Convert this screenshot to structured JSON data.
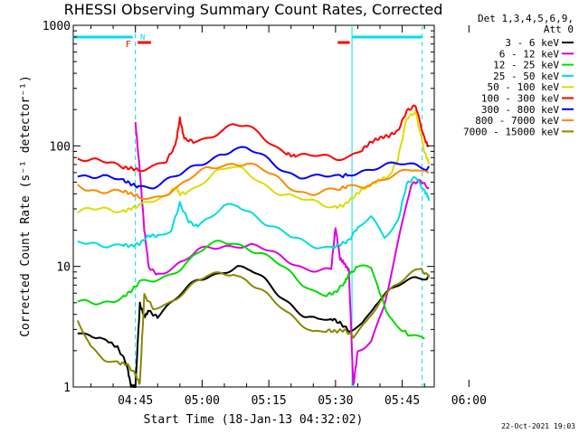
{
  "chart_data": {
    "type": "line",
    "title": "RHESSI Observing Summary Count Rates, Corrected",
    "xlabel": "Start Time (18-Jan-13 04:32:02)",
    "ylabel": "Corrected Count Rate (s⁻¹ detector⁻¹)",
    "yscale": "log",
    "ylim": [
      1,
      1000
    ],
    "y_ticks": [
      "1",
      "10",
      "100",
      "1000"
    ],
    "x_ticks": [
      "04:45",
      "05:00",
      "05:15",
      "05:30",
      "05:45",
      "06:00"
    ],
    "xlim_minutes": [
      -13.97,
      67.2
    ],
    "legend_header": [
      "Det 1,3,4,5,6,9,",
      "Att 0"
    ],
    "legend_position": "right",
    "markers": {
      "flare_label": "F",
      "night_label": "N"
    },
    "series": [
      {
        "name": "3 - 6 keV",
        "color": "#000000",
        "points": [
          [
            -13,
            3.0
          ],
          [
            -8,
            2.6
          ],
          [
            -4,
            2.0
          ],
          [
            -2,
            1.5
          ],
          [
            -1,
            1.0
          ],
          [
            0,
            1.0
          ],
          [
            1,
            5.0
          ],
          [
            2,
            4.0
          ],
          [
            3,
            4.5
          ],
          [
            5,
            4.0
          ],
          [
            8,
            5.0
          ],
          [
            11,
            6.0
          ],
          [
            14,
            7.5
          ],
          [
            17,
            8.5
          ],
          [
            20,
            9.5
          ],
          [
            23,
            10
          ],
          [
            26,
            9
          ],
          [
            29,
            7.5
          ],
          [
            32,
            6
          ],
          [
            35,
            5
          ],
          [
            38,
            4
          ],
          [
            41,
            3.5
          ],
          [
            44,
            3.5
          ],
          [
            46,
            3.3
          ],
          [
            48,
            3.0
          ],
          [
            51,
            3.5
          ],
          [
            54,
            5
          ],
          [
            57,
            6
          ],
          [
            60,
            7
          ],
          [
            63,
            8
          ],
          [
            66,
            8.5
          ]
        ]
      },
      {
        "name": "6 - 12 keV",
        "color": "#dd00dd",
        "points": [
          [
            0,
            150
          ],
          [
            1,
            60
          ],
          [
            2,
            20
          ],
          [
            3,
            10
          ],
          [
            5,
            9
          ],
          [
            8,
            10
          ],
          [
            11,
            11
          ],
          [
            14,
            13
          ],
          [
            17,
            14
          ],
          [
            20,
            15
          ],
          [
            23,
            15.5
          ],
          [
            26,
            15
          ],
          [
            29,
            13.5
          ],
          [
            32,
            12
          ],
          [
            35,
            11
          ],
          [
            38,
            10
          ],
          [
            41,
            9.5
          ],
          [
            44,
            9
          ],
          [
            45,
            20
          ],
          [
            46,
            11
          ],
          [
            47,
            10
          ],
          [
            48,
            9
          ],
          [
            49,
            1.0
          ],
          [
            50,
            2.0
          ],
          [
            53,
            2.5
          ],
          [
            56,
            5
          ],
          [
            59,
            15
          ],
          [
            62,
            45
          ],
          [
            64,
            50
          ],
          [
            66,
            45
          ]
        ]
      },
      {
        "name": "12 - 25 keV",
        "color": "#00dd00",
        "points": [
          [
            -13,
            5.0
          ],
          [
            -8,
            5.2
          ],
          [
            -3,
            5.5
          ],
          [
            -1,
            6.0
          ],
          [
            1,
            7.0
          ],
          [
            4,
            7.5
          ],
          [
            7,
            8.5
          ],
          [
            10,
            10
          ],
          [
            13,
            12
          ],
          [
            16,
            14
          ],
          [
            19,
            15.5
          ],
          [
            22,
            16
          ],
          [
            25,
            15
          ],
          [
            28,
            13
          ],
          [
            31,
            11
          ],
          [
            34,
            9
          ],
          [
            37,
            7.5
          ],
          [
            40,
            6.5
          ],
          [
            43,
            6
          ],
          [
            45,
            6
          ],
          [
            47,
            7.0
          ],
          [
            48,
            8
          ],
          [
            50,
            9.5
          ],
          [
            53,
            10
          ],
          [
            57,
            4
          ],
          [
            60,
            3
          ],
          [
            62,
            2.5
          ],
          [
            65,
            2.5
          ]
        ]
      },
      {
        "name": "25 - 50 keV",
        "color": "#00dddd",
        "points": [
          [
            -13,
            15
          ],
          [
            -8,
            15
          ],
          [
            -3,
            16
          ],
          [
            -1,
            15
          ],
          [
            1,
            15
          ],
          [
            3,
            17
          ],
          [
            5,
            17
          ],
          [
            8,
            20
          ],
          [
            10,
            35
          ],
          [
            12,
            25
          ],
          [
            14,
            22
          ],
          [
            17,
            25
          ],
          [
            20,
            30
          ],
          [
            23,
            32
          ],
          [
            26,
            29
          ],
          [
            29,
            24
          ],
          [
            32,
            20
          ],
          [
            35,
            17
          ],
          [
            38,
            15.5
          ],
          [
            41,
            15
          ],
          [
            44,
            15
          ],
          [
            46,
            15.5
          ],
          [
            48,
            16
          ],
          [
            50,
            20
          ],
          [
            53,
            25
          ],
          [
            56,
            18
          ],
          [
            59,
            25
          ],
          [
            61,
            50
          ],
          [
            63,
            55
          ],
          [
            65,
            40
          ],
          [
            66,
            35
          ]
        ]
      },
      {
        "name": "50 - 100 keV",
        "color": "#dddd00",
        "points": [
          [
            -13,
            28
          ],
          [
            -8,
            29
          ],
          [
            -3,
            30
          ],
          [
            -1,
            32
          ],
          [
            1,
            33
          ],
          [
            4,
            34
          ],
          [
            7,
            36
          ],
          [
            9,
            45
          ],
          [
            10,
            40
          ],
          [
            12,
            43
          ],
          [
            15,
            52
          ],
          [
            18,
            60
          ],
          [
            21,
            64
          ],
          [
            24,
            62
          ],
          [
            27,
            55
          ],
          [
            30,
            47
          ],
          [
            33,
            40
          ],
          [
            36,
            36
          ],
          [
            39,
            34
          ],
          [
            42,
            33
          ],
          [
            45,
            33
          ],
          [
            47,
            34
          ],
          [
            49,
            38
          ],
          [
            51,
            42
          ],
          [
            53,
            45
          ],
          [
            55,
            50
          ],
          [
            57,
            55
          ],
          [
            59,
            80
          ],
          [
            61,
            180
          ],
          [
            63,
            200
          ],
          [
            65,
            90
          ],
          [
            66,
            70
          ]
        ]
      },
      {
        "name": "100 - 300 keV",
        "color": "#ff0000",
        "points": [
          [
            -13,
            80
          ],
          [
            -8,
            72
          ],
          [
            -3,
            67
          ],
          [
            -1,
            68
          ],
          [
            1,
            67
          ],
          [
            4,
            68
          ],
          [
            7,
            72
          ],
          [
            9,
            95
          ],
          [
            10,
            160
          ],
          [
            11,
            110
          ],
          [
            13,
            110
          ],
          [
            16,
            120
          ],
          [
            19,
            135
          ],
          [
            22,
            145
          ],
          [
            25,
            140
          ],
          [
            28,
            125
          ],
          [
            31,
            105
          ],
          [
            34,
            90
          ],
          [
            36,
            82
          ],
          [
            39,
            80
          ],
          [
            42,
            80
          ],
          [
            45,
            80
          ],
          [
            48,
            85
          ],
          [
            51,
            95
          ],
          [
            53,
            105
          ],
          [
            55,
            110
          ],
          [
            57,
            115
          ],
          [
            59,
            130
          ],
          [
            61,
            200
          ],
          [
            63,
            230
          ],
          [
            65,
            120
          ],
          [
            66,
            100
          ]
        ]
      },
      {
        "name": "300 - 800 keV",
        "color": "#0000ff",
        "points": [
          [
            -13,
            60
          ],
          [
            -8,
            55
          ],
          [
            -3,
            50
          ],
          [
            -1,
            48
          ],
          [
            1,
            47
          ],
          [
            4,
            48
          ],
          [
            7,
            52
          ],
          [
            10,
            56
          ],
          [
            13,
            64
          ],
          [
            16,
            75
          ],
          [
            19,
            88
          ],
          [
            22,
            95
          ],
          [
            25,
            92
          ],
          [
            28,
            82
          ],
          [
            31,
            72
          ],
          [
            34,
            63
          ],
          [
            37,
            57
          ],
          [
            40,
            54
          ],
          [
            43,
            54
          ],
          [
            46,
            55
          ],
          [
            48,
            60
          ],
          [
            51,
            64
          ],
          [
            54,
            66
          ],
          [
            57,
            67
          ],
          [
            60,
            69
          ],
          [
            63,
            70
          ],
          [
            66,
            68
          ]
        ]
      },
      {
        "name": "800 - 7000 keV",
        "color": "#ff8800",
        "points": [
          [
            -13,
            48
          ],
          [
            -8,
            43
          ],
          [
            -3,
            40
          ],
          [
            -1,
            38
          ],
          [
            1,
            37
          ],
          [
            4,
            38
          ],
          [
            7,
            42
          ],
          [
            10,
            46
          ],
          [
            13,
            54
          ],
          [
            16,
            63
          ],
          [
            19,
            70
          ],
          [
            22,
            74
          ],
          [
            25,
            72
          ],
          [
            28,
            63
          ],
          [
            31,
            55
          ],
          [
            34,
            48
          ],
          [
            37,
            43
          ],
          [
            40,
            41
          ],
          [
            43,
            41
          ],
          [
            46,
            42
          ],
          [
            48,
            45
          ],
          [
            51,
            48
          ],
          [
            54,
            52
          ],
          [
            57,
            55
          ],
          [
            60,
            58
          ],
          [
            63,
            62
          ],
          [
            66,
            60
          ]
        ]
      },
      {
        "name": "7000 - 15000 keV",
        "color": "#888800",
        "points": [
          [
            -13,
            3.5
          ],
          [
            -10,
            2.2
          ],
          [
            -7,
            1.8
          ],
          [
            -4,
            1.6
          ],
          [
            -2,
            1.5
          ],
          [
            0,
            1.2
          ],
          [
            1,
            1.0
          ],
          [
            2,
            5.5
          ],
          [
            4,
            4.5
          ],
          [
            7,
            5
          ],
          [
            10,
            6
          ],
          [
            13,
            7
          ],
          [
            16,
            8
          ],
          [
            19,
            8.5
          ],
          [
            22,
            9
          ],
          [
            25,
            8
          ],
          [
            28,
            6.5
          ],
          [
            31,
            5
          ],
          [
            34,
            4
          ],
          [
            37,
            3.5
          ],
          [
            40,
            3
          ],
          [
            43,
            3
          ],
          [
            45,
            2.8
          ],
          [
            47,
            2.8
          ],
          [
            49,
            2.5
          ],
          [
            52,
            3.5
          ],
          [
            55,
            5.5
          ],
          [
            58,
            7
          ],
          [
            61,
            8
          ],
          [
            64,
            9
          ],
          [
            66,
            8
          ]
        ]
      }
    ]
  },
  "footer_date": "22-Oct-2021 19:03"
}
